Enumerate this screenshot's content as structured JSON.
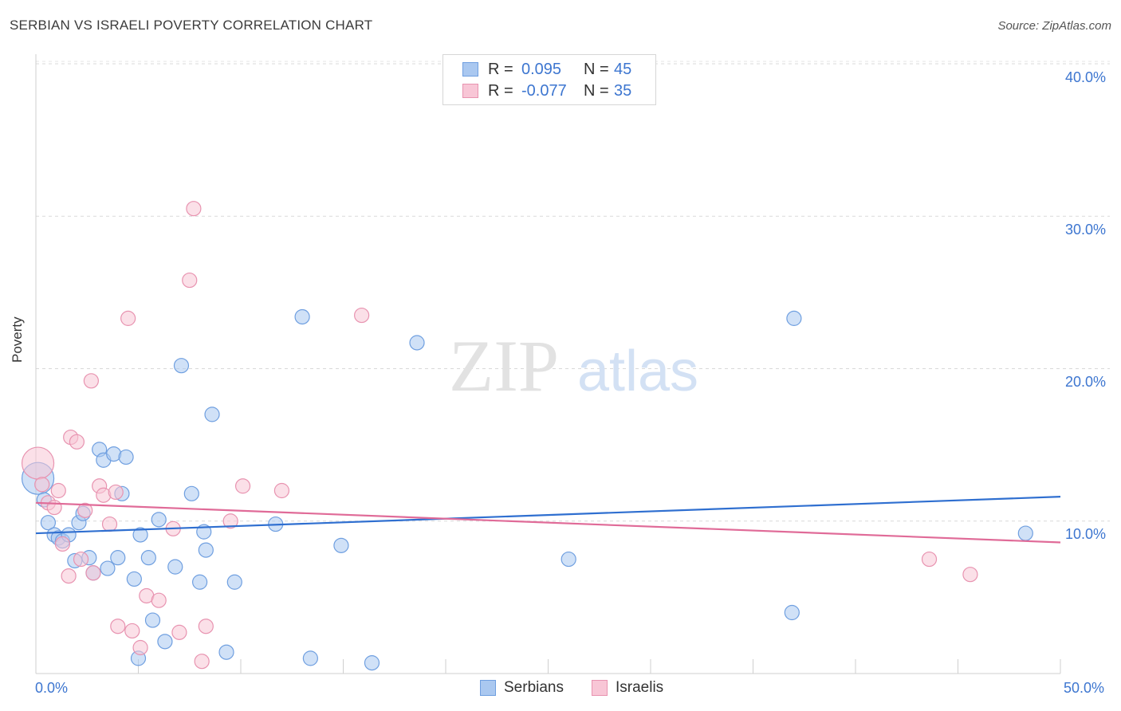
{
  "title": "SERBIAN VS ISRAELI POVERTY CORRELATION CHART",
  "source": "Source: ZipAtlas.com",
  "watermark": {
    "zip": "ZIP",
    "atlas": "atlas"
  },
  "legend_top": [
    {
      "r_label": "R =",
      "r_value": "0.095",
      "n_label": "N =",
      "n_value": "45",
      "color": "#aac8f0",
      "border": "#6f9fe0"
    },
    {
      "r_label": "R =",
      "r_value": "-0.077",
      "n_label": "N =",
      "n_value": "35",
      "color": "#f8c6d6",
      "border": "#e893b0"
    }
  ],
  "legend_bottom": [
    {
      "label": "Serbians",
      "color": "#aac8f0",
      "border": "#6f9fe0"
    },
    {
      "label": "Israelis",
      "color": "#f8c6d6",
      "border": "#e893b0"
    }
  ],
  "y_axis": {
    "label": "Poverty",
    "ticks": [
      "10.0%",
      "20.0%",
      "30.0%",
      "40.0%"
    ]
  },
  "x_axis": {
    "min_label": "0.0%",
    "max_label": "50.0%"
  },
  "chart_data": {
    "type": "scatter",
    "title": "SERBIAN VS ISRAELI POVERTY CORRELATION CHART",
    "xlabel": "",
    "ylabel": "Poverty",
    "xlim": [
      0,
      50
    ],
    "ylim": [
      0,
      40
    ],
    "grid": true,
    "legend_position": "top-center",
    "series": [
      {
        "name": "Serbians",
        "color": "#6f9fe0",
        "fill": "#aac8f0",
        "trend": {
          "x": [
            0,
            50
          ],
          "y": [
            9.2,
            11.6
          ]
        },
        "points": [
          {
            "x": 0.1,
            "y": 12.8,
            "big": true
          },
          {
            "x": 0.4,
            "y": 11.4
          },
          {
            "x": 0.6,
            "y": 9.9
          },
          {
            "x": 0.9,
            "y": 9.1
          },
          {
            "x": 1.1,
            "y": 8.9
          },
          {
            "x": 1.3,
            "y": 8.7
          },
          {
            "x": 1.6,
            "y": 9.1
          },
          {
            "x": 1.9,
            "y": 7.4
          },
          {
            "x": 2.1,
            "y": 9.9
          },
          {
            "x": 2.3,
            "y": 10.5
          },
          {
            "x": 2.6,
            "y": 7.6
          },
          {
            "x": 2.8,
            "y": 6.6
          },
          {
            "x": 3.1,
            "y": 14.7
          },
          {
            "x": 3.3,
            "y": 14.0
          },
          {
            "x": 3.5,
            "y": 6.9
          },
          {
            "x": 3.8,
            "y": 14.4
          },
          {
            "x": 4.0,
            "y": 7.6
          },
          {
            "x": 4.2,
            "y": 11.8
          },
          {
            "x": 4.4,
            "y": 14.2
          },
          {
            "x": 4.8,
            "y": 6.2
          },
          {
            "x": 5.1,
            "y": 9.1
          },
          {
            "x": 5.5,
            "y": 7.6
          },
          {
            "x": 5.7,
            "y": 3.5
          },
          {
            "x": 6.0,
            "y": 10.1
          },
          {
            "x": 6.3,
            "y": 2.1
          },
          {
            "x": 6.8,
            "y": 7.0
          },
          {
            "x": 7.1,
            "y": 20.2
          },
          {
            "x": 7.6,
            "y": 11.8
          },
          {
            "x": 8.0,
            "y": 6.0
          },
          {
            "x": 8.2,
            "y": 9.3
          },
          {
            "x": 8.6,
            "y": 17.0
          },
          {
            "x": 9.7,
            "y": 6.0
          },
          {
            "x": 11.7,
            "y": 9.8
          },
          {
            "x": 13.0,
            "y": 23.4
          },
          {
            "x": 14.9,
            "y": 8.4
          },
          {
            "x": 18.6,
            "y": 21.7
          },
          {
            "x": 26.0,
            "y": 7.5
          },
          {
            "x": 37.0,
            "y": 23.3
          },
          {
            "x": 48.3,
            "y": 9.2
          },
          {
            "x": 36.9,
            "y": 4.0
          },
          {
            "x": 5.0,
            "y": 1.0
          },
          {
            "x": 9.3,
            "y": 1.4
          },
          {
            "x": 13.4,
            "y": 1.0
          },
          {
            "x": 16.4,
            "y": 0.7
          },
          {
            "x": 8.3,
            "y": 8.1
          }
        ]
      },
      {
        "name": "Israelis",
        "color": "#e893b0",
        "fill": "#f8c6d6",
        "trend": {
          "x": [
            0,
            50
          ],
          "y": [
            11.2,
            8.6
          ]
        },
        "points": [
          {
            "x": 0.1,
            "y": 13.8,
            "big": true
          },
          {
            "x": 0.3,
            "y": 12.4
          },
          {
            "x": 0.6,
            "y": 11.2
          },
          {
            "x": 0.9,
            "y": 10.9
          },
          {
            "x": 1.1,
            "y": 12.0
          },
          {
            "x": 1.3,
            "y": 8.5
          },
          {
            "x": 1.6,
            "y": 6.4
          },
          {
            "x": 1.7,
            "y": 15.5
          },
          {
            "x": 2.0,
            "y": 15.2
          },
          {
            "x": 2.2,
            "y": 7.5
          },
          {
            "x": 2.4,
            "y": 10.7
          },
          {
            "x": 2.7,
            "y": 19.2
          },
          {
            "x": 2.8,
            "y": 6.6
          },
          {
            "x": 3.1,
            "y": 12.3
          },
          {
            "x": 3.3,
            "y": 11.7
          },
          {
            "x": 3.6,
            "y": 9.8
          },
          {
            "x": 3.9,
            "y": 11.9
          },
          {
            "x": 4.0,
            "y": 3.1
          },
          {
            "x": 4.5,
            "y": 23.3
          },
          {
            "x": 4.7,
            "y": 2.8
          },
          {
            "x": 5.1,
            "y": 1.7
          },
          {
            "x": 5.4,
            "y": 5.1
          },
          {
            "x": 6.0,
            "y": 4.8
          },
          {
            "x": 6.7,
            "y": 9.5
          },
          {
            "x": 7.0,
            "y": 2.7
          },
          {
            "x": 7.5,
            "y": 25.8
          },
          {
            "x": 7.7,
            "y": 30.5
          },
          {
            "x": 8.1,
            "y": 0.8
          },
          {
            "x": 8.3,
            "y": 3.1
          },
          {
            "x": 9.5,
            "y": 10.0
          },
          {
            "x": 10.1,
            "y": 12.3
          },
          {
            "x": 12.0,
            "y": 12.0
          },
          {
            "x": 15.9,
            "y": 23.5
          },
          {
            "x": 43.6,
            "y": 7.5
          },
          {
            "x": 45.6,
            "y": 6.5
          }
        ]
      }
    ]
  }
}
